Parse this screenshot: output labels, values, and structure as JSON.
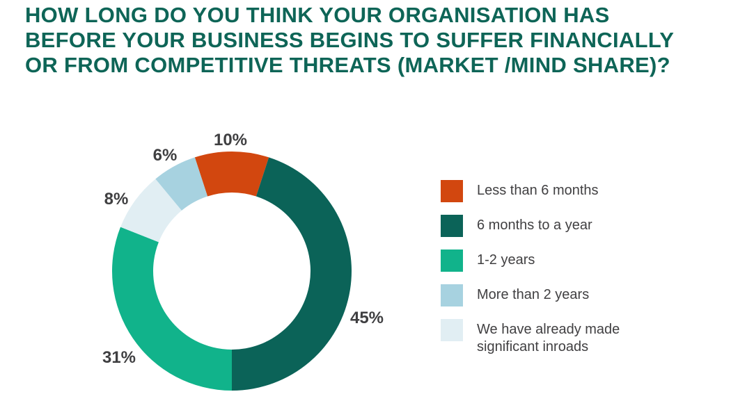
{
  "chart_data": {
    "type": "pie",
    "variant": "donut",
    "title": "HOW LONG DO YOU THINK YOUR ORGANISATION HAS\nBEFORE YOUR BUSINESS BEGINS TO SUFFER FINANCIALLY\nOR FROM COMPETITIVE THREATS (MARKET /MIND SHARE)?",
    "title_color": "#0e6557",
    "start_angle_deg": -18,
    "direction": "clockwise",
    "legend_position": "right",
    "value_label_color": "#3f3f41",
    "slices": [
      {
        "label": "Less than 6 months",
        "value": 10,
        "display": "10%",
        "color": "#d2470f"
      },
      {
        "label": "6 months to a year",
        "value": 45,
        "display": "45%",
        "color": "#0b6358"
      },
      {
        "label": "1-2 years",
        "value": 31,
        "display": "31%",
        "color": "#11b38b"
      },
      {
        "label": "We have already made significant inroads",
        "value": 8,
        "display": "8%",
        "color": "#e1eef3"
      },
      {
        "label": "More than 2 years",
        "value": 6,
        "display": "6%",
        "color": "#a7d2e0"
      }
    ]
  },
  "legend": {
    "items": [
      {
        "label": "Less than 6 months",
        "color": "#d2470f"
      },
      {
        "label": "6 months to a year",
        "color": "#0b6358"
      },
      {
        "label": "1-2 years",
        "color": "#11b38b"
      },
      {
        "label": "More than 2 years",
        "color": "#a7d2e0"
      },
      {
        "label": "We have already made significant inroads",
        "color": "#e1eef3"
      }
    ]
  }
}
